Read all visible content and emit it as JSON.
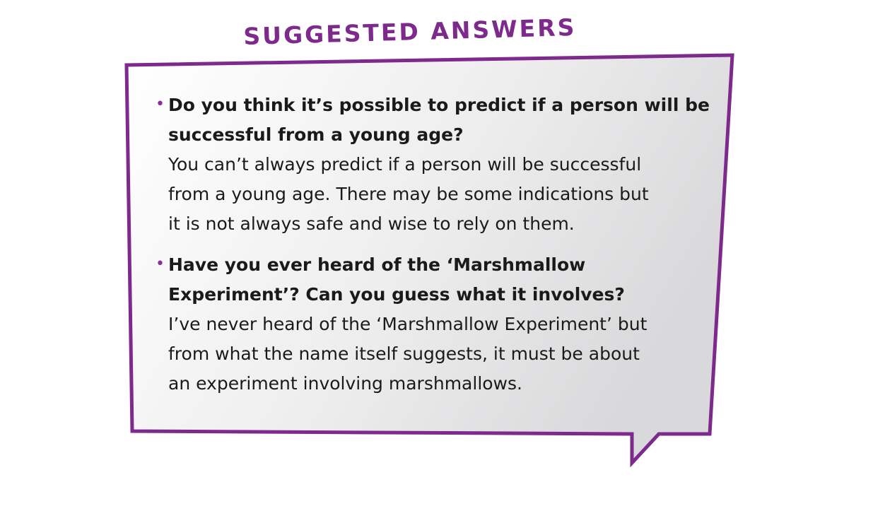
{
  "heading": "SUGGESTED ANSWERS",
  "colors": {
    "accent": "#7d2a8c",
    "bubble_fill_light": "#ffffff",
    "bubble_fill_dark": "#d9d9db",
    "text": "#1a1a1a"
  },
  "items": [
    {
      "question_lines": [
        "Do you think it’s possible to predict if a person will be",
        "successful from a young age?"
      ],
      "answer_lines": [
        "You can’t always predict if a person will be successful",
        "from a young age. There may be some indications but",
        "it is not always safe and wise to rely on them."
      ]
    },
    {
      "question_lines": [
        "Have you ever heard of the ‘Marshmallow",
        "Experiment’? Can you guess what it involves?"
      ],
      "answer_lines": [
        "I’ve never heard of the ‘Marshmallow Experiment’ but",
        "from what the name itself suggests, it must be about",
        "an experiment involving marshmallows."
      ]
    }
  ]
}
